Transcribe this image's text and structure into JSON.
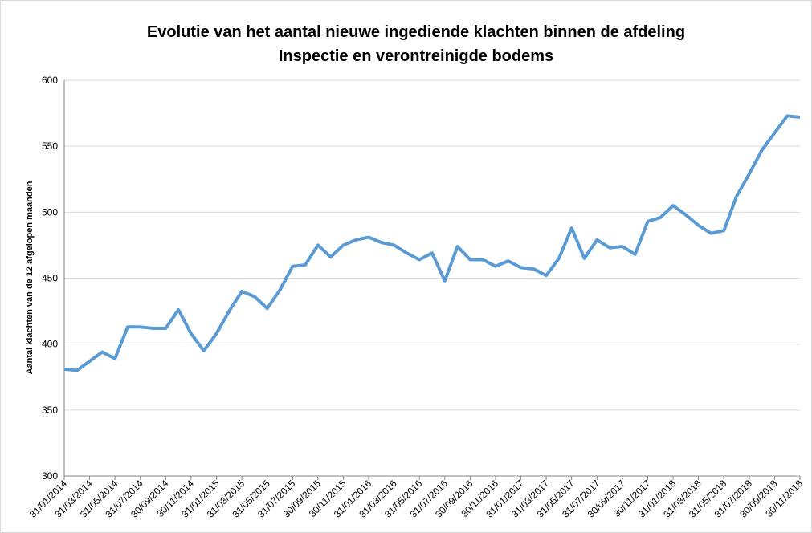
{
  "chart_data": {
    "type": "line",
    "title": [
      "Evolutie van het aantal nieuwe ingediende klachten binnen de afdeling",
      "Inspectie en verontreinigde bodems"
    ],
    "y_label": "Aantal klachten van de 12 afgelopen maanden",
    "categories": [
      "31/01/2014",
      null,
      "31/03/2014",
      null,
      "31/05/2014",
      null,
      "31/07/2014",
      null,
      "30/09/2014",
      null,
      "30/11/2014",
      null,
      "31/01/2015",
      null,
      "31/03/2015",
      null,
      "31/05/2015",
      null,
      "31/07/2015",
      null,
      "30/09/2015",
      null,
      "30/11/2015",
      null,
      "31/01/2016",
      null,
      "31/03/2016",
      null,
      "31/05/2016",
      null,
      "31/07/2016",
      null,
      "30/09/2016",
      null,
      "30/11/2016",
      null,
      "31/01/2017",
      null,
      "31/03/2017",
      null,
      "31/05/2017",
      null,
      "31/07/2017",
      null,
      "30/09/2017",
      null,
      "30/11/2017",
      null,
      "31/01/2018",
      null,
      "31/03/2018",
      null,
      "31/05/2018",
      null,
      "31/07/2018",
      null,
      "30/09/2018",
      null,
      "30/11/2018"
    ],
    "series": [
      {
        "name": "Klachten",
        "color": "#5b9bd5",
        "values": [
          381,
          380,
          387,
          394,
          389,
          413,
          413,
          412,
          412,
          426,
          408,
          395,
          408,
          425,
          440,
          436,
          427,
          441,
          459,
          460,
          475,
          466,
          475,
          479,
          481,
          477,
          475,
          469,
          464,
          469,
          448,
          474,
          464,
          464,
          459,
          463,
          458,
          457,
          452,
          465,
          488,
          465,
          479,
          473,
          474,
          468,
          493,
          496,
          505,
          498,
          490,
          484,
          486,
          512,
          529,
          547,
          560,
          573,
          572
        ]
      }
    ],
    "ylim": [
      300,
      600
    ],
    "yticks": [
      300,
      350,
      400,
      450,
      500,
      550,
      600
    ],
    "grid": true
  }
}
